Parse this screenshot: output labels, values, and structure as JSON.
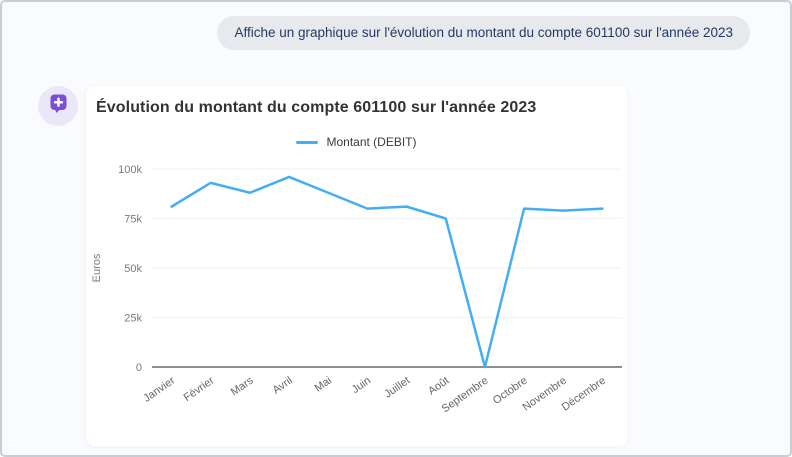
{
  "chat": {
    "user_message": "Affiche un graphique sur l'évolution du montant du compte 601100 sur l'année 2023"
  },
  "assistant": {
    "avatar_icon": "message-plus-icon"
  },
  "chart_card": {
    "title": "Évolution du montant du compte 601100 sur l'année 2023"
  },
  "chart_data": {
    "type": "line",
    "title": "Évolution du montant du compte 601100 sur l'année 2023",
    "categories": [
      "Janvier",
      "Février",
      "Mars",
      "Avril",
      "Mai",
      "Juin",
      "Juillet",
      "Août",
      "Septembre",
      "Octobre",
      "Novembre",
      "Décembre"
    ],
    "series": [
      {
        "name": "Montant (DEBIT)",
        "color": "#45aef3",
        "values": [
          81000,
          93000,
          88000,
          96000,
          88000,
          80000,
          81000,
          75000,
          0,
          80000,
          79000,
          80000
        ]
      }
    ],
    "xlabel": "",
    "ylabel": "Euros",
    "ylim": [
      0,
      100000
    ],
    "yticks": [
      {
        "value": 0,
        "label": "0"
      },
      {
        "value": 25000,
        "label": "25k"
      },
      {
        "value": 50000,
        "label": "50k"
      },
      {
        "value": 75000,
        "label": "75k"
      },
      {
        "value": 100000,
        "label": "100k"
      }
    ],
    "grid": true,
    "legend_position": "top",
    "x_tick_rotation_deg": 35
  },
  "colors": {
    "page_background": "#fafbfe",
    "window_border": "#c9ccd5",
    "bubble_background": "#e8e9ec",
    "bubble_text": "#223a66",
    "card_background": "#ffffff",
    "title_text": "#333333",
    "series_line": "#45aef3",
    "gridline": "#f2f2f5",
    "axis_line": "#8f8f8f",
    "y_tick_label": "#7b7b7b",
    "x_tick_label": "#666666",
    "avatar_background": "#eae8f8",
    "avatar_glyph": "#7a4fd3"
  }
}
